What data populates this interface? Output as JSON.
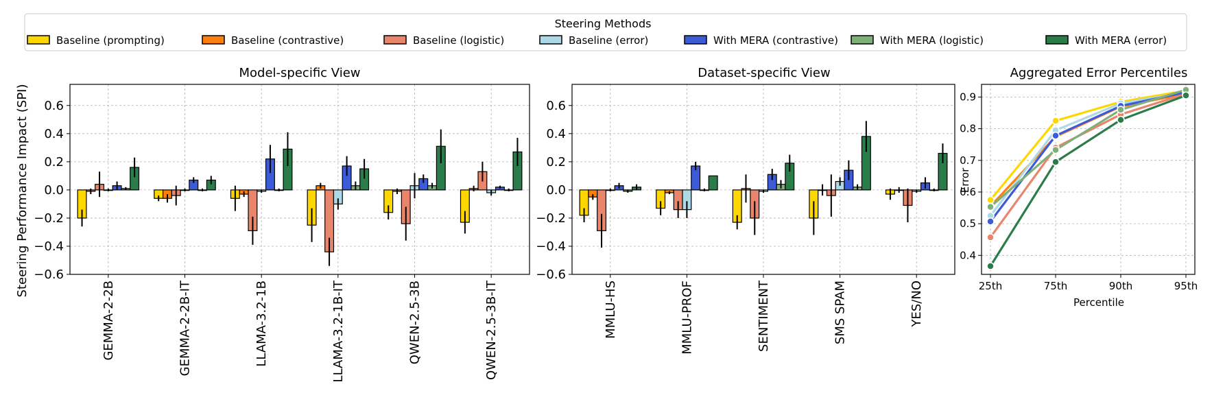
{
  "legend": {
    "title": "Steering Methods",
    "items": [
      {
        "label": "Baseline (prompting)",
        "color": "#FFD700"
      },
      {
        "label": "Baseline (contrastive)",
        "color": "#FF7F0E"
      },
      {
        "label": "Baseline (logistic)",
        "color": "#E9856B"
      },
      {
        "label": "Baseline (error)",
        "color": "#ADD8E6"
      },
      {
        "label": "With MERA (contrastive)",
        "color": "#3C5BD6"
      },
      {
        "label": "With MERA (logistic)",
        "color": "#7FB07A"
      },
      {
        "label": "With MERA (error)",
        "color": "#2A7C49"
      }
    ]
  },
  "shared_ylabel": "Steering Performance Impact (SPI)",
  "chart_data": [
    {
      "id": "model",
      "type": "bar",
      "title": "Model-specific View",
      "xlabel": "",
      "ylabel": "Steering Performance Impact (SPI)",
      "ylim": [
        -0.6,
        0.75
      ],
      "yticks": [
        -0.6,
        -0.4,
        -0.2,
        0.0,
        0.2,
        0.4,
        0.6
      ],
      "ytick_labels": [
        "−0.6",
        "−0.4",
        "−0.2",
        "0.0",
        "0.2",
        "0.4",
        "0.6"
      ],
      "grid": true,
      "categories": [
        "GEMMA-2-2B",
        "GEMMA-2-2B-IT",
        "LLAMA-3.2-1B",
        "LLAMA-3.2-1B-IT",
        "QWEN-2.5-3B",
        "QWEN-2.5-3B-IT"
      ],
      "series": [
        {
          "name": "Baseline (prompting)",
          "values": [
            -0.2,
            -0.06,
            -0.06,
            -0.25,
            -0.16,
            -0.23
          ],
          "errors": [
            0.06,
            0.02,
            0.09,
            0.12,
            0.05,
            0.08
          ]
        },
        {
          "name": "Baseline (contrastive)",
          "values": [
            -0.01,
            -0.06,
            -0.03,
            0.03,
            -0.01,
            0.01
          ],
          "errors": [
            0.02,
            0.03,
            0.02,
            0.02,
            0.02,
            0.02
          ]
        },
        {
          "name": "Baseline (logistic)",
          "values": [
            0.04,
            -0.04,
            -0.29,
            -0.44,
            -0.24,
            0.13
          ],
          "errors": [
            0.09,
            0.07,
            0.1,
            0.1,
            0.12,
            0.07
          ]
        },
        {
          "name": "Baseline (error)",
          "values": [
            0.0,
            0.0,
            -0.01,
            -0.1,
            0.03,
            -0.02
          ],
          "errors": [
            0.01,
            0.01,
            0.01,
            0.04,
            0.09,
            0.02
          ]
        },
        {
          "name": "With MERA (contrastive)",
          "values": [
            0.03,
            0.07,
            0.22,
            0.17,
            0.08,
            0.02
          ],
          "errors": [
            0.03,
            0.02,
            0.1,
            0.07,
            0.03,
            0.01
          ]
        },
        {
          "name": "With MERA (logistic)",
          "values": [
            0.01,
            0.0,
            0.0,
            0.03,
            0.03,
            0.0
          ],
          "errors": [
            0.01,
            0.01,
            0.01,
            0.03,
            0.02,
            0.01
          ]
        },
        {
          "name": "With MERA (error)",
          "values": [
            0.16,
            0.07,
            0.29,
            0.15,
            0.31,
            0.27
          ],
          "errors": [
            0.07,
            0.03,
            0.12,
            0.07,
            0.12,
            0.1
          ]
        }
      ]
    },
    {
      "id": "dataset",
      "type": "bar",
      "title": "Dataset-specific View",
      "xlabel": "",
      "ylabel": "",
      "ylim": [
        -0.6,
        0.75
      ],
      "yticks": [
        -0.6,
        -0.4,
        -0.2,
        0.0,
        0.2,
        0.4,
        0.6
      ],
      "ytick_labels": [
        "−0.6",
        "−0.4",
        "−0.2",
        "0.0",
        "0.2",
        "0.4",
        "0.6"
      ],
      "grid": true,
      "categories": [
        "MMLU-HS",
        "MMLU-PROF",
        "SENTIMENT",
        "SMS SPAM",
        "YES/NO"
      ],
      "series": [
        {
          "name": "Baseline (prompting)",
          "values": [
            -0.18,
            -0.13,
            -0.23,
            -0.2,
            -0.03
          ],
          "errors": [
            0.05,
            0.05,
            0.05,
            0.12,
            0.04
          ]
        },
        {
          "name": "Baseline (contrastive)",
          "values": [
            -0.05,
            -0.02,
            0.01,
            0.0,
            0.0
          ],
          "errors": [
            0.02,
            0.01,
            0.1,
            0.04,
            0.02
          ]
        },
        {
          "name": "Baseline (logistic)",
          "values": [
            -0.29,
            -0.14,
            -0.2,
            -0.04,
            -0.11
          ],
          "errors": [
            0.12,
            0.06,
            0.12,
            0.15,
            0.12
          ]
        },
        {
          "name": "Baseline (error)",
          "values": [
            0.0,
            -0.14,
            -0.01,
            0.06,
            -0.01
          ],
          "errors": [
            0.01,
            0.06,
            0.01,
            0.03,
            0.01
          ]
        },
        {
          "name": "With MERA (contrastive)",
          "values": [
            0.03,
            0.17,
            0.11,
            0.14,
            0.05
          ],
          "errors": [
            0.02,
            0.03,
            0.04,
            0.07,
            0.04
          ]
        },
        {
          "name": "With MERA (logistic)",
          "values": [
            -0.01,
            0.0,
            0.04,
            0.02,
            0.0
          ],
          "errors": [
            0.01,
            0.01,
            0.03,
            0.02,
            0.01
          ]
        },
        {
          "name": "With MERA (error)",
          "values": [
            0.02,
            0.1,
            0.19,
            0.38,
            0.26
          ],
          "errors": [
            0.02,
            0.0,
            0.06,
            0.11,
            0.07
          ]
        }
      ]
    },
    {
      "id": "agg",
      "type": "line",
      "title": "Aggregated Error Percentiles",
      "xlabel": "Percentile",
      "ylabel": "Error",
      "ylim": [
        0.34,
        0.94
      ],
      "yticks": [
        0.4,
        0.5,
        0.6,
        0.7,
        0.8,
        0.9
      ],
      "ytick_labels": [
        "0.4",
        "0.5",
        "0.6",
        "0.7",
        "0.8",
        "0.9"
      ],
      "grid": true,
      "categories": [
        "25th",
        "75th",
        "90th",
        "95th"
      ],
      "series": [
        {
          "name": "Baseline (prompting)",
          "values": [
            0.575,
            0.825,
            0.885,
            0.92
          ]
        },
        {
          "name": "Baseline (contrastive)",
          "values": [
            0.555,
            0.775,
            0.87,
            0.91
          ]
        },
        {
          "name": "Baseline (logistic)",
          "values": [
            0.457,
            0.74,
            0.845,
            0.91
          ]
        },
        {
          "name": "Baseline (error)",
          "values": [
            0.525,
            0.795,
            0.88,
            0.915
          ]
        },
        {
          "name": "With MERA (contrastive)",
          "values": [
            0.507,
            0.778,
            0.872,
            0.915
          ]
        },
        {
          "name": "With MERA (logistic)",
          "values": [
            0.553,
            0.733,
            0.86,
            0.923
          ]
        },
        {
          "name": "With MERA (error)",
          "values": [
            0.366,
            0.695,
            0.828,
            0.905
          ]
        }
      ]
    }
  ]
}
